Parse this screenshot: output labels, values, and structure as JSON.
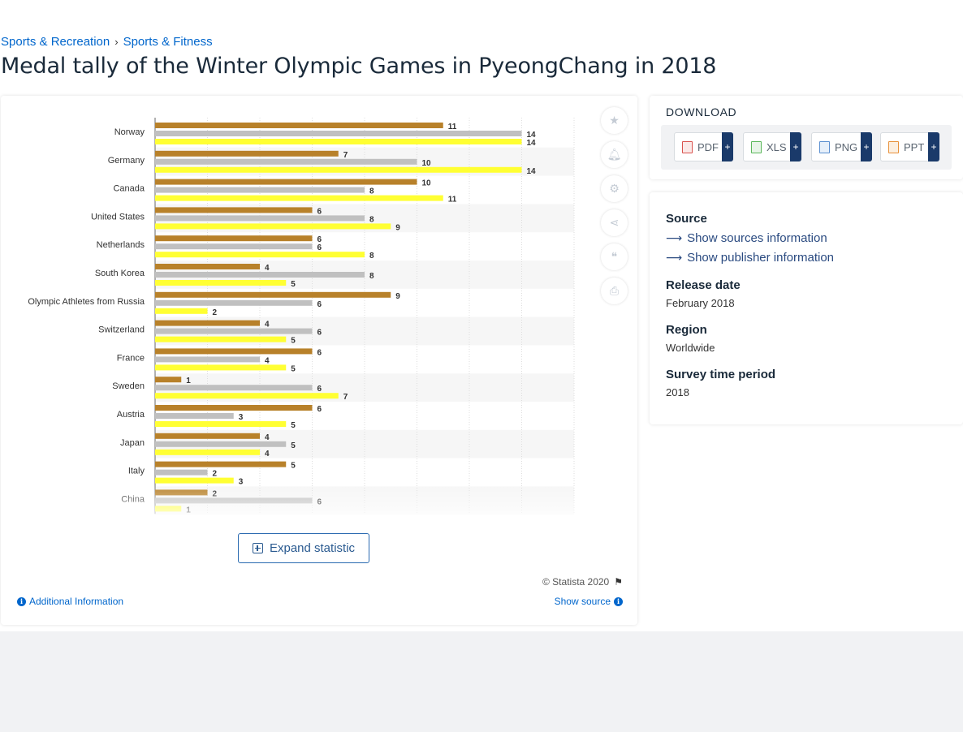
{
  "breadcrumb": {
    "item1": "Sports & Recreation",
    "separator": "›",
    "item2": "Sports & Fitness"
  },
  "page_title": "Medal tally of the Winter Olympic Games in PyeongChang in 2018",
  "chart_data": {
    "type": "bar",
    "orientation": "horizontal",
    "categories": [
      "Norway",
      "Germany",
      "Canada",
      "United States",
      "Netherlands",
      "South Korea",
      "Olympic Athletes from Russia",
      "Switzerland",
      "France",
      "Sweden",
      "Austria",
      "Japan",
      "Italy",
      "China"
    ],
    "series": [
      {
        "color": "#b8812a",
        "values": [
          11,
          7,
          10,
          6,
          6,
          4,
          9,
          4,
          6,
          1,
          6,
          4,
          5,
          2
        ]
      },
      {
        "color": "#c0c0c0",
        "values": [
          14,
          10,
          8,
          8,
          6,
          8,
          6,
          6,
          4,
          6,
          3,
          5,
          2,
          6
        ]
      },
      {
        "color": "#ffff33",
        "values": [
          14,
          14,
          11,
          9,
          8,
          5,
          2,
          5,
          5,
          7,
          5,
          4,
          3,
          1
        ]
      }
    ],
    "title": "",
    "xlabel": "",
    "ylabel": "",
    "xlim": [
      0,
      16
    ],
    "grid": true,
    "legend": "none",
    "faded_last_category": true
  },
  "chart_actions": [
    "star-icon",
    "bell-icon",
    "gear-icon",
    "share-icon",
    "quote-icon",
    "print-icon"
  ],
  "expand_label": "Expand statistic",
  "copyright": "© Statista 2020",
  "additional_info": "Additional Information",
  "show_source": "Show source",
  "download": {
    "title": "DOWNLOAD",
    "buttons": [
      {
        "label": "PDF",
        "plus": "+",
        "icon_color": "#d9534f"
      },
      {
        "label": "XLS",
        "plus": "+",
        "icon_color": "#5cb85c"
      },
      {
        "label": "PNG",
        "plus": "+",
        "icon_color": "#5b8fd0"
      },
      {
        "label": "PPT",
        "plus": "+",
        "icon_color": "#e8913a"
      }
    ]
  },
  "info": {
    "source_label": "Source",
    "show_sources": "Show sources information",
    "show_publisher": "Show publisher information",
    "release_label": "Release date",
    "release_value": "February 2018",
    "region_label": "Region",
    "region_value": "Worldwide",
    "period_label": "Survey time period",
    "period_value": "2018"
  }
}
